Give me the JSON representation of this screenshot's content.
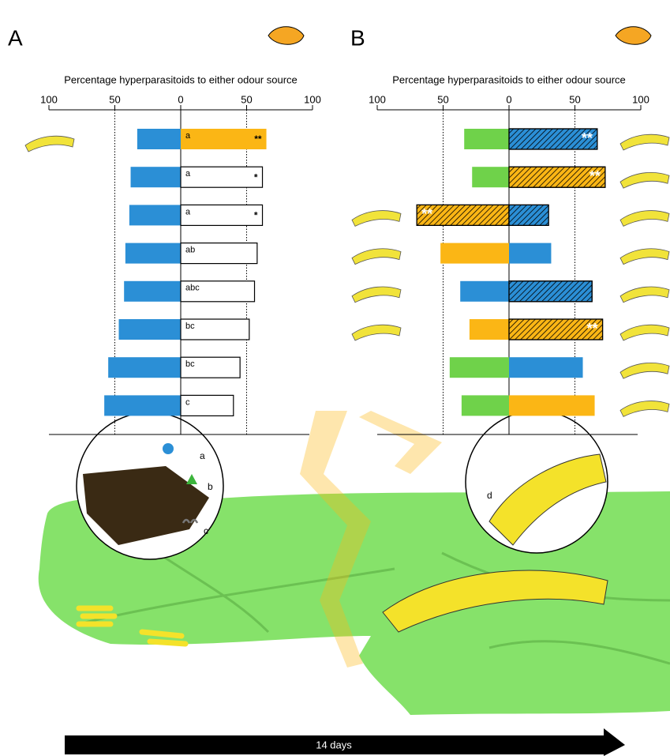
{
  "chart_data": [
    {
      "type": "diverging_bar",
      "label": "A",
      "title": "Percentage hyperparasitoids to either odour source",
      "xlim": [
        -100,
        100
      ],
      "xticks": [
        {
          "value": -100,
          "label": "100"
        },
        {
          "value": -50,
          "label": "50"
        },
        0,
        50,
        100
      ],
      "row_letters": [
        "a",
        "a",
        "a",
        "ab",
        "abc",
        "bc",
        "bc",
        "c"
      ],
      "series": [
        {
          "values": [
            -33,
            -38,
            -39,
            -42,
            -43,
            -47,
            -55,
            -58
          ],
          "colors": [
            "#2b8fd6",
            "#2b8fd6",
            "#2b8fd6",
            "#2b8fd6",
            "#2b8fd6",
            "#2b8fd6",
            "#2b8fd6",
            "#2b8fd6"
          ],
          "hatched": [
            false,
            false,
            false,
            false,
            false,
            false,
            false,
            false
          ],
          "labels": [
            null,
            null,
            null,
            null,
            null,
            null,
            null,
            null
          ]
        },
        {
          "values": [
            65,
            62,
            62,
            58,
            56,
            52,
            45,
            40
          ],
          "colors": [
            "#fbb615",
            "#ffffff",
            "#ffffff",
            "#ffffff",
            "#ffffff",
            "#ffffff",
            "#ffffff",
            "#ffffff"
          ],
          "hatched": [
            false,
            false,
            false,
            false,
            false,
            false,
            false,
            false
          ],
          "labels": [
            "**",
            "*",
            "*",
            null,
            null,
            null,
            null,
            null
          ]
        }
      ]
    },
    {
      "type": "diverging_bar",
      "label": "B",
      "title": "Percentage hyperparasitoids to either odour source",
      "xlim": [
        -100,
        100
      ],
      "xticks": [
        {
          "value": -100,
          "label": "100"
        },
        {
          "value": -50,
          "label": "50"
        },
        0,
        50,
        100
      ],
      "series": [
        {
          "values": [
            -34,
            -28,
            -70,
            -52,
            -37,
            -30,
            -45,
            -36
          ],
          "colors": [
            "#6fd24a",
            "#6fd24a",
            "#fbb615",
            "#fbb615",
            "#2b8fd6",
            "#fbb615",
            "#6fd24a",
            "#6fd24a"
          ],
          "hatched": [
            false,
            false,
            true,
            false,
            false,
            false,
            false,
            false
          ],
          "labels": [
            null,
            null,
            "**",
            null,
            null,
            null,
            null,
            null
          ]
        },
        {
          "values": [
            67,
            73,
            30,
            32,
            63,
            71,
            56,
            65
          ],
          "colors": [
            "#2b8fd6",
            "#fbb615",
            "#2b8fd6",
            "#2b8fd6",
            "#2b8fd6",
            "#fbb615",
            "#2b8fd6",
            "#fbb615"
          ],
          "hatched": [
            true,
            true,
            true,
            false,
            true,
            true,
            false,
            false
          ],
          "labels": [
            "**",
            "**",
            null,
            null,
            null,
            "**",
            null,
            null
          ]
        }
      ]
    }
  ],
  "illustration_labels": [
    "a",
    "b",
    "c",
    "d"
  ],
  "timeline": "14 days"
}
